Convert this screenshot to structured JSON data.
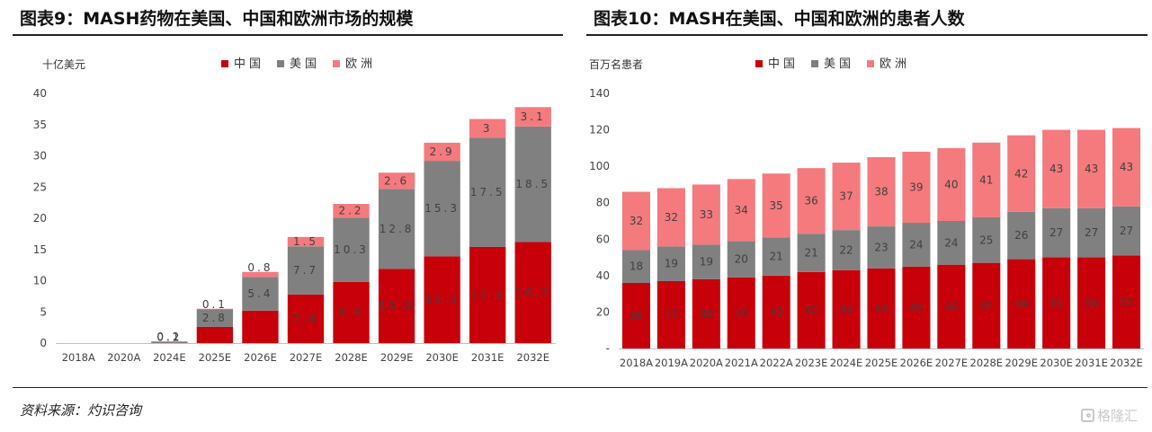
{
  "source": "资料来源：灼识咨询",
  "watermark": "格隆汇",
  "colors": {
    "china": "#c8000a",
    "us": "#808080",
    "eu": "#f47a7e"
  },
  "chart_data": [
    {
      "type": "bar",
      "stacked": true,
      "title": "图表9：MASH药物在美国、中国和欧洲市场的规模",
      "ylabel": "十亿美元",
      "xlabel": "",
      "ylim": [
        0,
        40
      ],
      "yticks": [
        "0",
        "5",
        "10",
        "15",
        "20",
        "25",
        "30",
        "35",
        "40"
      ],
      "ytick_values": [
        0,
        5,
        10,
        15,
        20,
        25,
        30,
        35,
        40
      ],
      "grid": false,
      "legend": "top",
      "categories": [
        "2018A",
        "2020A",
        "2024E",
        "2025E",
        "2026E",
        "2027E",
        "2028E",
        "2029E",
        "2030E",
        "2031E",
        "2032E"
      ],
      "series": [
        {
          "name": "中国",
          "values": [
            0,
            0,
            0,
            2.6,
            5.2,
            7.8,
            9.8,
            11.9,
            13.9,
            15.4,
            16.2
          ],
          "labels": [
            "",
            "",
            "",
            "",
            "",
            "7.8",
            "9.8",
            "11.9",
            "13.9",
            "15.4",
            "16.2"
          ]
        },
        {
          "name": "美国",
          "values": [
            0,
            0,
            0.2,
            2.8,
            5.4,
            7.7,
            10.3,
            12.8,
            15.3,
            17.5,
            18.5
          ],
          "labels": [
            "",
            "",
            "0.2",
            "2.8",
            "5.4",
            "7.7",
            "10.3",
            "12.8",
            "15.3",
            "17.5",
            "18.5"
          ]
        },
        {
          "name": "欧洲",
          "values": [
            0,
            0,
            0.1,
            0.1,
            0.8,
            1.5,
            2.2,
            2.6,
            2.9,
            3,
            3.1
          ],
          "labels": [
            "",
            "",
            "0.1",
            "0.1",
            "0.8",
            "1.5",
            "2.2",
            "2.6",
            "2.9",
            "3",
            "3.1"
          ]
        }
      ]
    },
    {
      "type": "bar",
      "stacked": true,
      "title": "图表10：MASH在美国、中国和欧洲的患者人数",
      "ylabel": "百万名患者",
      "xlabel": "",
      "ylim": [
        0,
        140
      ],
      "yticks": [
        "-",
        "20",
        "40",
        "60",
        "80",
        "100",
        "120",
        "140"
      ],
      "ytick_values": [
        0,
        20,
        40,
        60,
        80,
        100,
        120,
        140
      ],
      "grid": false,
      "legend": "top",
      "categories": [
        "2018A",
        "2019A",
        "2020A",
        "2021A",
        "2022A",
        "2023E",
        "2024E",
        "2025E",
        "2026E",
        "2027E",
        "2028E",
        "2029E",
        "2030E",
        "2031E",
        "2032E"
      ],
      "series": [
        {
          "name": "中国",
          "values": [
            36,
            37,
            38,
            39,
            40,
            42,
            43,
            44,
            45,
            46,
            47,
            49,
            50,
            50,
            51
          ],
          "labels": [
            "36",
            "37",
            "38",
            "39",
            "40",
            "42",
            "43",
            "44",
            "45",
            "46",
            "47",
            "49",
            "50",
            "50",
            "51"
          ]
        },
        {
          "name": "美国",
          "values": [
            18,
            19,
            19,
            20,
            21,
            21,
            22,
            23,
            24,
            24,
            25,
            26,
            27,
            27,
            27
          ],
          "labels": [
            "18",
            "19",
            "19",
            "20",
            "21",
            "21",
            "22",
            "23",
            "24",
            "24",
            "25",
            "26",
            "27",
            "27",
            "27"
          ]
        },
        {
          "name": "欧洲",
          "values": [
            32,
            32,
            33,
            34,
            35,
            36,
            37,
            38,
            39,
            40,
            41,
            42,
            43,
            43,
            43
          ],
          "labels": [
            "32",
            "32",
            "33",
            "34",
            "35",
            "36",
            "37",
            "38",
            "39",
            "40",
            "41",
            "42",
            "43",
            "43",
            "43"
          ]
        }
      ]
    }
  ]
}
